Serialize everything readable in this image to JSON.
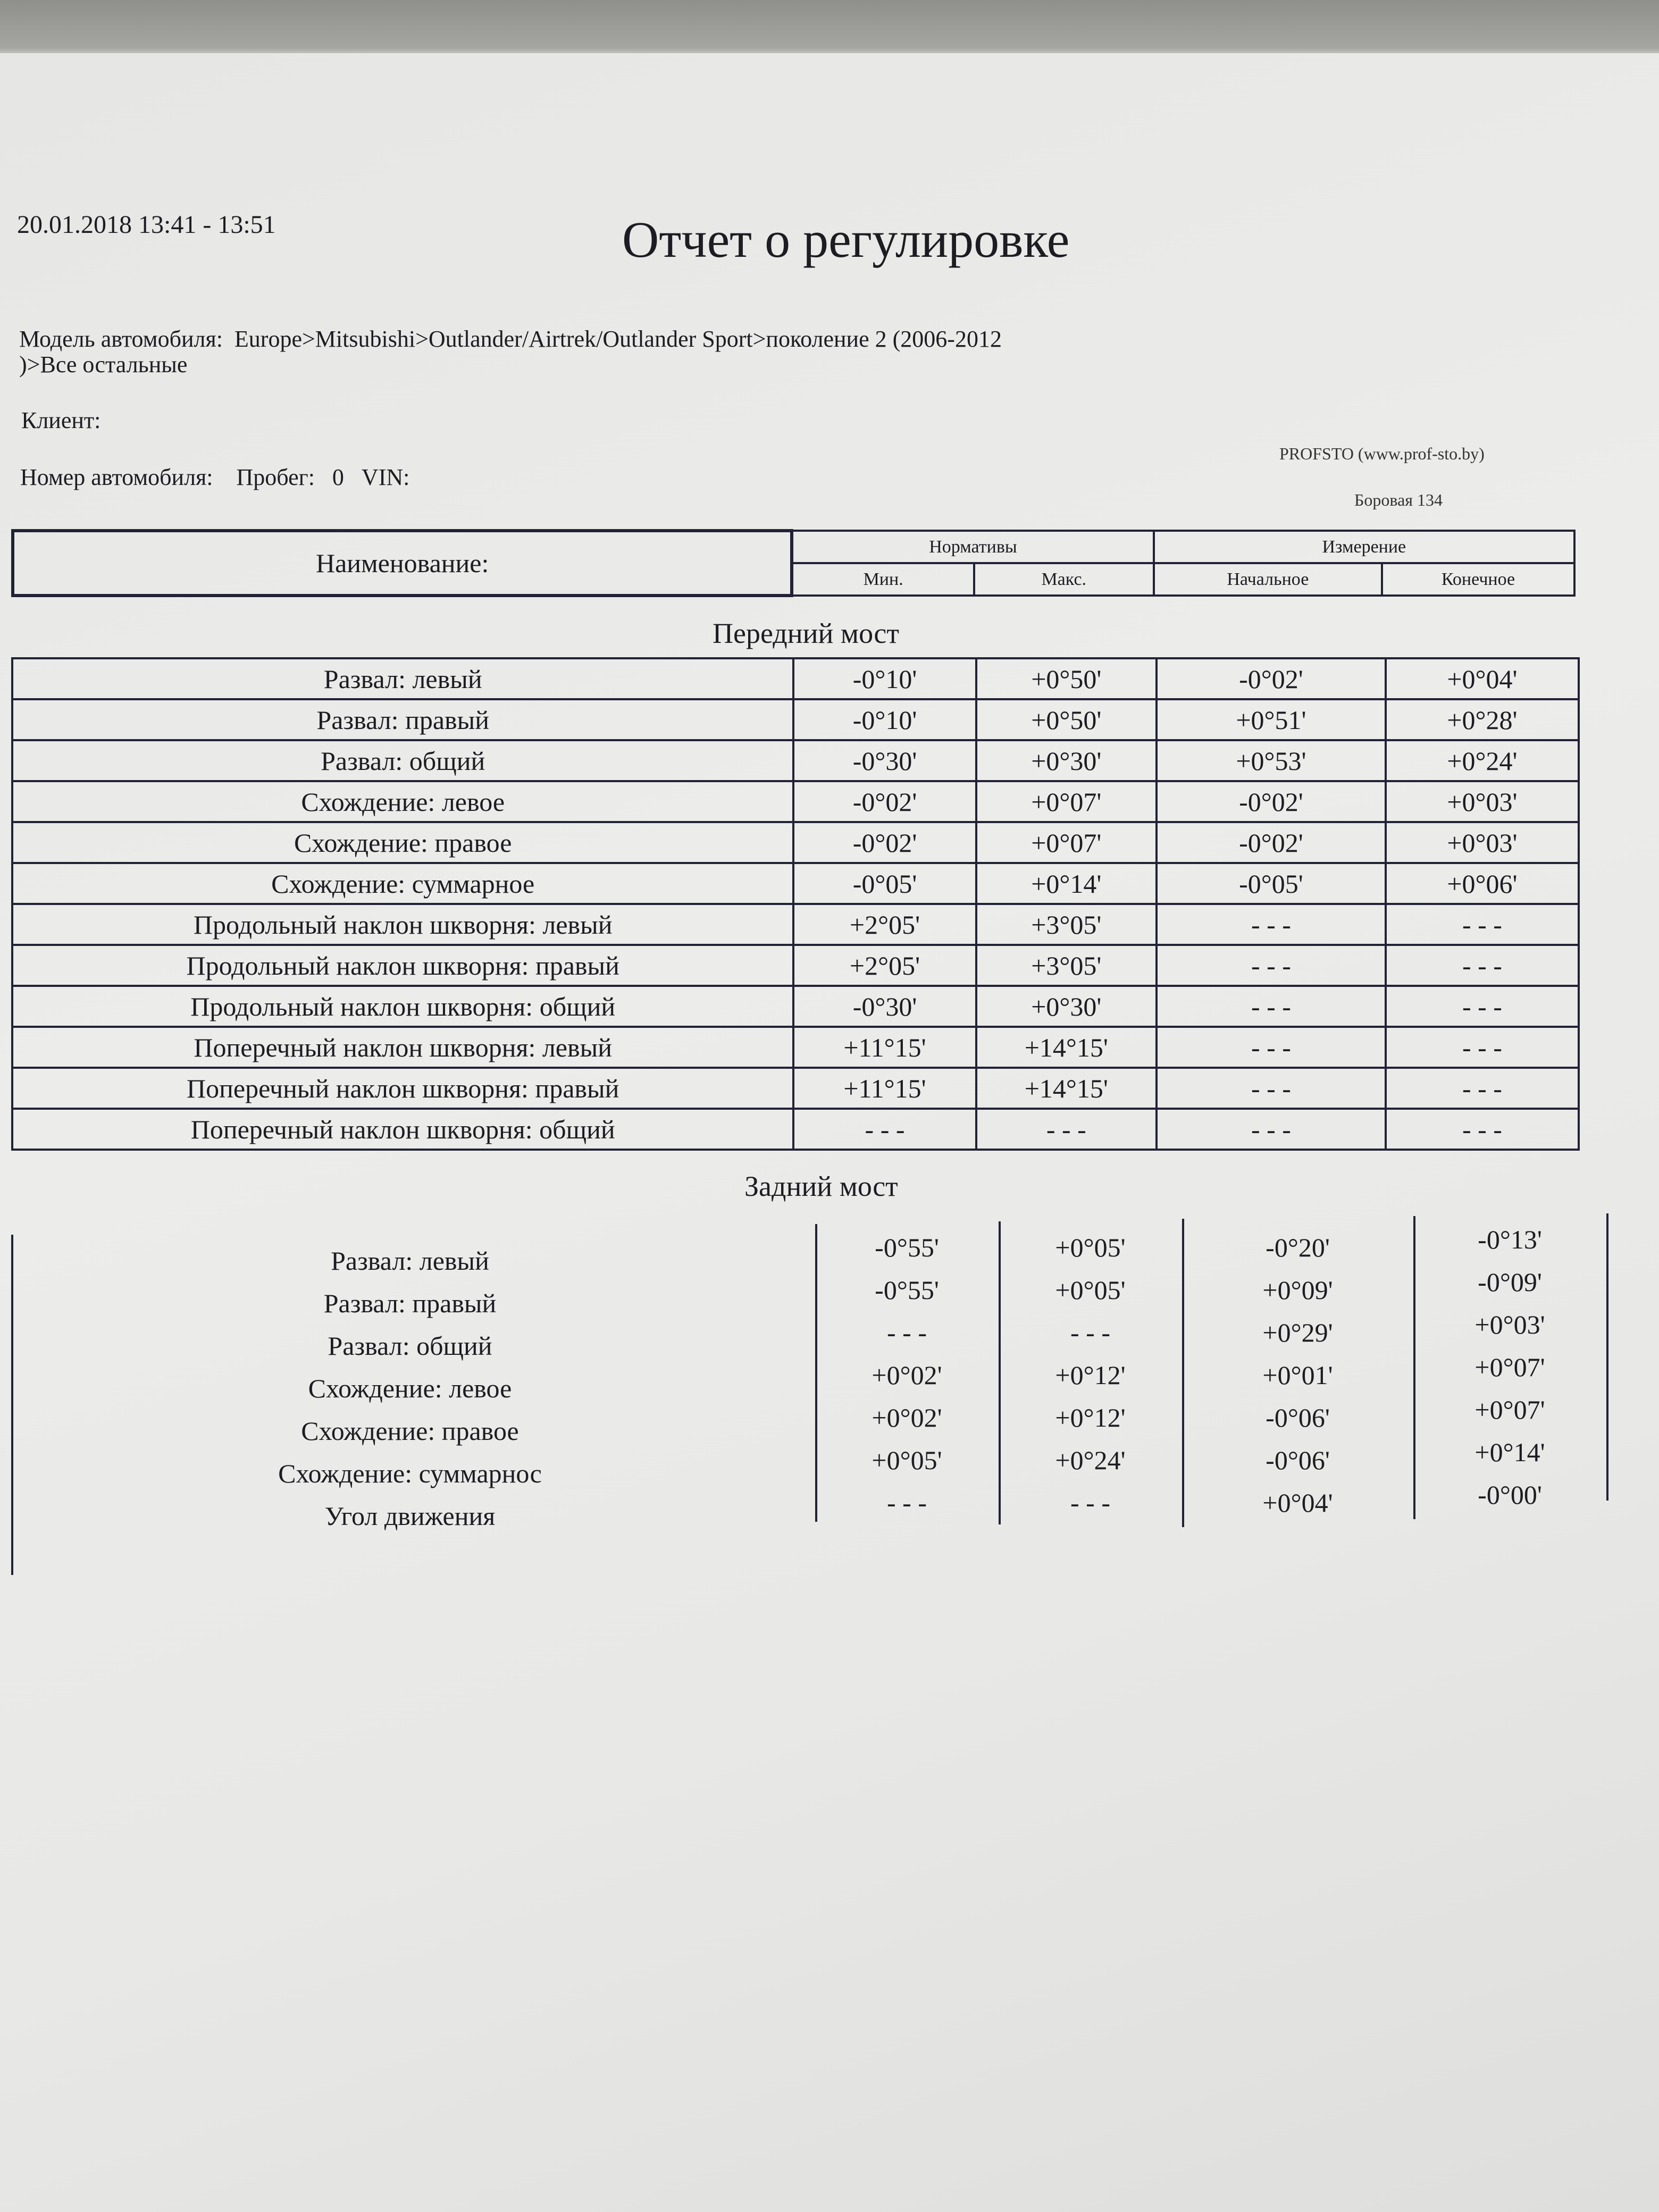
{
  "header": {
    "datetime": "20.01.2018 13:41 - 13:51",
    "title": "Отчет о регулировке",
    "model_label": "Модель автомобиля:",
    "model_value": "Europe>Mitsubishi>Outlander/Airtrek/Outlander Sport>поколение 2 (2006-2012",
    "model_value_cont": ")>Все остальные",
    "client_label": "Клиент:",
    "plate_label": "Номер автомобиля:",
    "mileage_label": "Пробег:",
    "mileage_value": "0",
    "vin_label": "VIN:",
    "company": "PROFSTO (www.prof-sto.by)",
    "address": "Боровая 134"
  },
  "table_header": {
    "name": "Наименование:",
    "norms": "Нормативы",
    "measurement": "Измерение",
    "min": "Мин.",
    "max": "Макс.",
    "initial": "Начальное",
    "final": "Конечное"
  },
  "front": {
    "title": "Передний мост",
    "rows": [
      {
        "label": "Развал: левый",
        "min": "-0°10'",
        "max": "+0°50'",
        "initial": "-0°02'",
        "final": "+0°04'"
      },
      {
        "label": "Развал: правый",
        "min": "-0°10'",
        "max": "+0°50'",
        "initial": "+0°51'",
        "final": "+0°28'"
      },
      {
        "label": "Развал: общий",
        "min": "-0°30'",
        "max": "+0°30'",
        "initial": "+0°53'",
        "final": "+0°24'"
      },
      {
        "label": "Схождение: левое",
        "min": "-0°02'",
        "max": "+0°07'",
        "initial": "-0°02'",
        "final": "+0°03'"
      },
      {
        "label": "Схождение: правое",
        "min": "-0°02'",
        "max": "+0°07'",
        "initial": "-0°02'",
        "final": "+0°03'"
      },
      {
        "label": "Схождение: суммарное",
        "min": "-0°05'",
        "max": "+0°14'",
        "initial": "-0°05'",
        "final": "+0°06'"
      },
      {
        "label": "Продольный наклон шкворня: левый",
        "min": "+2°05'",
        "max": "+3°05'",
        "initial": "- - -",
        "final": "- - -"
      },
      {
        "label": "Продольный наклон шкворня: правый",
        "min": "+2°05'",
        "max": "+3°05'",
        "initial": "- - -",
        "final": "- - -"
      },
      {
        "label": "Продольный наклон шкворня: общий",
        "min": "-0°30'",
        "max": "+0°30'",
        "initial": "- - -",
        "final": "- - -"
      },
      {
        "label": "Поперечный наклон шкворня: левый",
        "min": "+11°15'",
        "max": "+14°15'",
        "initial": "- - -",
        "final": "- - -"
      },
      {
        "label": "Поперечный наклон шкворня: правый",
        "min": "+11°15'",
        "max": "+14°15'",
        "initial": "- - -",
        "final": "- - -"
      },
      {
        "label": "Поперечный наклон шкворня: общий",
        "min": "- - -",
        "max": "- - -",
        "initial": "- - -",
        "final": "- - -"
      }
    ]
  },
  "rear": {
    "title": "Задний мост",
    "rows": [
      {
        "label": "Развал: левый",
        "min": "-0°55'",
        "max": "+0°05'",
        "initial": "-0°20'",
        "final": "-0°13'"
      },
      {
        "label": "Развал: правый",
        "min": "-0°55'",
        "max": "+0°05'",
        "initial": "+0°09'",
        "final": "-0°09'"
      },
      {
        "label": "Развал: общий",
        "min": "- - -",
        "max": "- - -",
        "initial": "+0°29'",
        "final": "+0°03'"
      },
      {
        "label": "Схождение: левое",
        "min": "+0°02'",
        "max": "+0°12'",
        "initial": "+0°01'",
        "final": "+0°07'"
      },
      {
        "label": "Схождение: правое",
        "min": "+0°02'",
        "max": "+0°12'",
        "initial": "-0°06'",
        "final": "+0°07'"
      },
      {
        "label": "Схождение: суммарнос",
        "min": "+0°05'",
        "max": "+0°24'",
        "initial": "-0°06'",
        "final": "+0°14'"
      },
      {
        "label": "Угол движения",
        "min": "- - -",
        "max": "- - -",
        "initial": "+0°04'",
        "final": "-0°00'"
      }
    ]
  }
}
